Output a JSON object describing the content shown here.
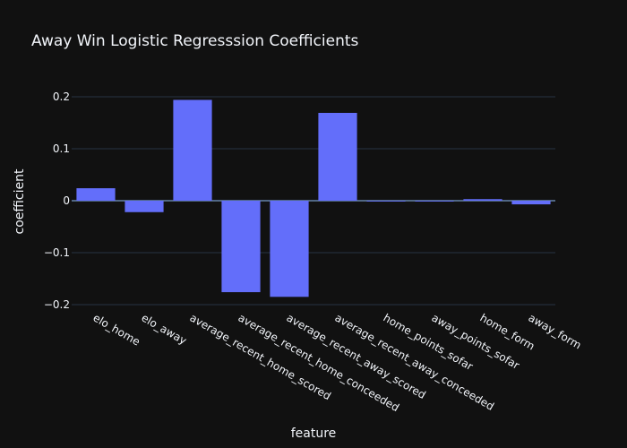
{
  "chart_data": {
    "type": "bar",
    "title": "Away Win Logistic Regresssion Coefficients",
    "xlabel": "feature",
    "ylabel": "coefficient",
    "categories": [
      "elo_home",
      "elo_away",
      "average_recent_home_scored",
      "average_recent_home_conceeded",
      "average_recent_away_scored",
      "average_recent_away_conceeded",
      "home_points_sofar",
      "away_points_sofar",
      "home_form",
      "away_form"
    ],
    "values": [
      0.024,
      -0.022,
      0.194,
      -0.176,
      -0.185,
      0.169,
      -0.001,
      -0.001,
      0.003,
      -0.007
    ],
    "ylim": [
      -0.2,
      0.2
    ],
    "yticks": [
      -0.2,
      -0.1,
      0,
      0.1,
      0.2
    ],
    "ytick_labels": [
      "−0.2",
      "−0.1",
      "0",
      "0.1",
      "0.2"
    ],
    "grid": true,
    "bar_color": "#636efa",
    "background": "#111111"
  }
}
